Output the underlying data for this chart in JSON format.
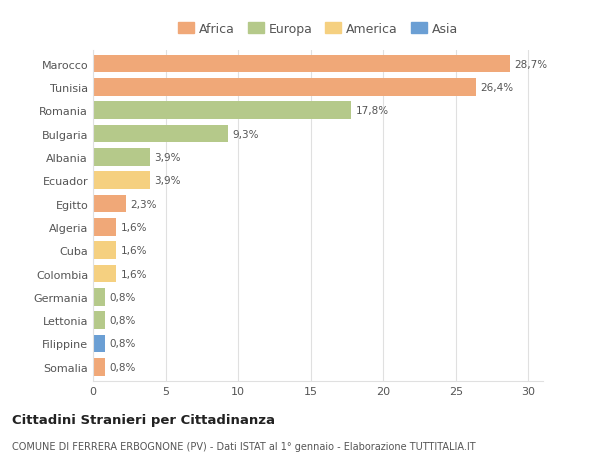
{
  "categories": [
    "Marocco",
    "Tunisia",
    "Romania",
    "Bulgaria",
    "Albania",
    "Ecuador",
    "Egitto",
    "Algeria",
    "Cuba",
    "Colombia",
    "Germania",
    "Lettonia",
    "Filippine",
    "Somalia"
  ],
  "values": [
    28.7,
    26.4,
    17.8,
    9.3,
    3.9,
    3.9,
    2.3,
    1.6,
    1.6,
    1.6,
    0.8,
    0.8,
    0.8,
    0.8
  ],
  "labels": [
    "28,7%",
    "26,4%",
    "17,8%",
    "9,3%",
    "3,9%",
    "3,9%",
    "2,3%",
    "1,6%",
    "1,6%",
    "1,6%",
    "0,8%",
    "0,8%",
    "0,8%",
    "0,8%"
  ],
  "continent": [
    "Africa",
    "Africa",
    "Europa",
    "Europa",
    "Europa",
    "America",
    "Africa",
    "Africa",
    "America",
    "America",
    "Europa",
    "Europa",
    "Asia",
    "Africa"
  ],
  "colors": {
    "Africa": "#F0A878",
    "Europa": "#B5C98A",
    "America": "#F5D080",
    "Asia": "#6B9FD4"
  },
  "legend_order": [
    "Africa",
    "Europa",
    "America",
    "Asia"
  ],
  "title": "Cittadini Stranieri per Cittadinanza",
  "subtitle": "COMUNE DI FERRERA ERBOGNONE (PV) - Dati ISTAT al 1° gennaio - Elaborazione TUTTITALIA.IT",
  "xlim": [
    0,
    31
  ],
  "xticks": [
    0,
    5,
    10,
    15,
    20,
    25,
    30
  ],
  "background_color": "#ffffff",
  "grid_color": "#e0e0e0"
}
